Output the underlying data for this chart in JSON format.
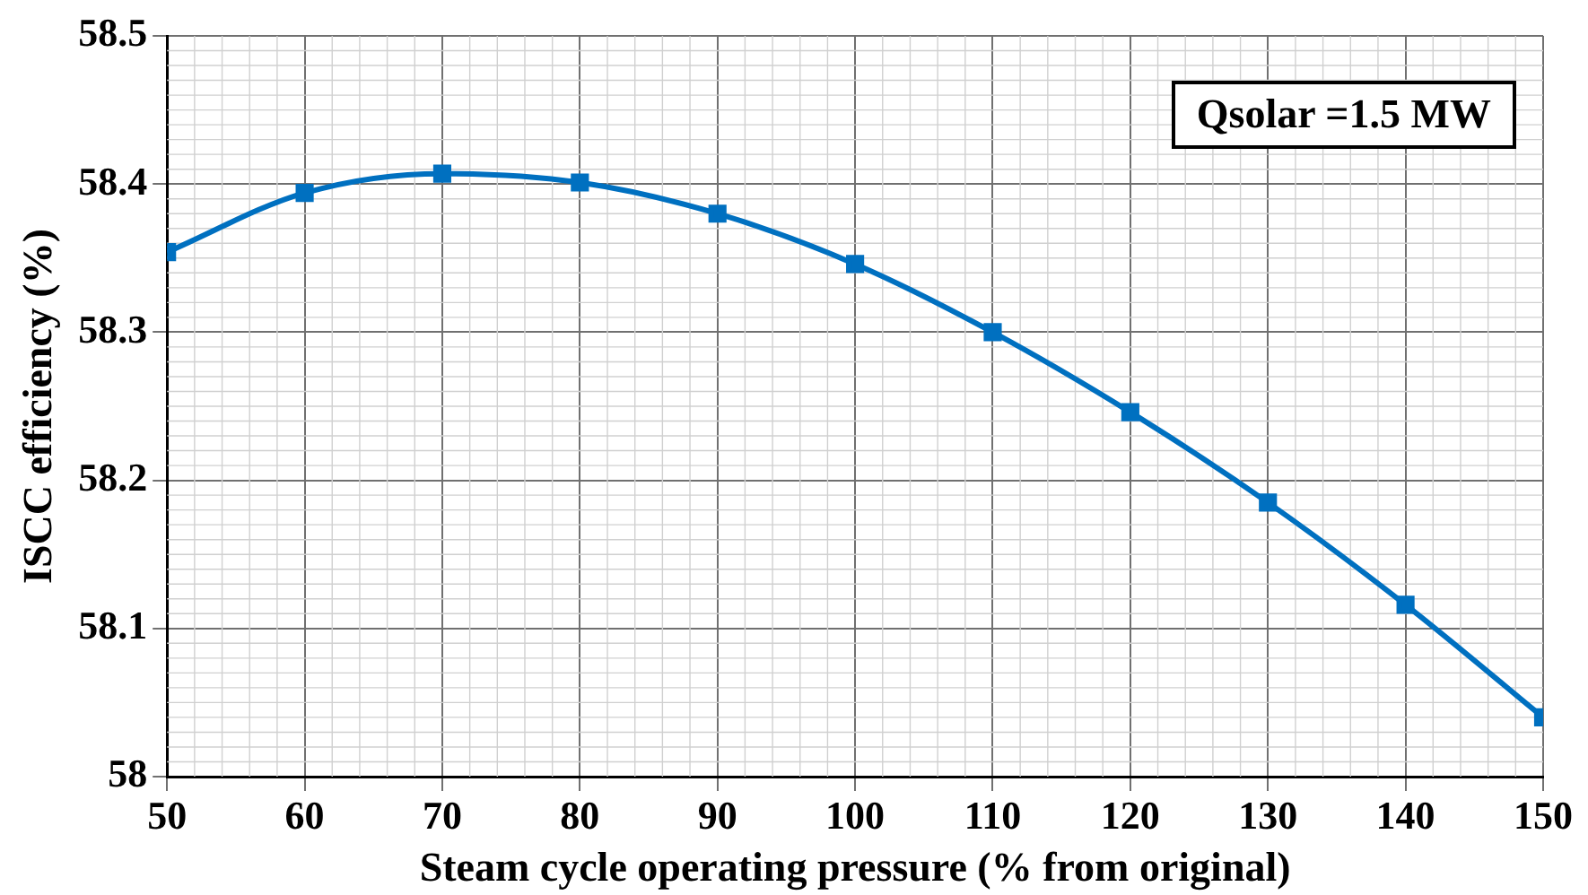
{
  "chart_data": {
    "type": "line",
    "xlabel": "Steam cycle operating pressure (% from original)",
    "ylabel": "ISCC efficiency (%)",
    "annotations": [
      "Qsolar =1.5 MW"
    ],
    "x": [
      50,
      60,
      70,
      80,
      90,
      100,
      110,
      120,
      130,
      140,
      150
    ],
    "series": [
      {
        "color": "#0070c0",
        "values": [
          58.354,
          58.394,
          58.407,
          58.401,
          58.38,
          58.346,
          58.3,
          58.246,
          58.185,
          58.116,
          58.04
        ]
      }
    ],
    "xlim": [
      50,
      150
    ],
    "xticks": [
      50,
      60,
      70,
      80,
      90,
      100,
      110,
      120,
      130,
      140,
      150
    ],
    "ylim": [
      58,
      58.5
    ],
    "yticks": [
      58,
      58.1,
      58.2,
      58.3,
      58.4,
      58.5
    ],
    "grid": true,
    "legend": false,
    "marker": "square",
    "line_style": "solid"
  }
}
